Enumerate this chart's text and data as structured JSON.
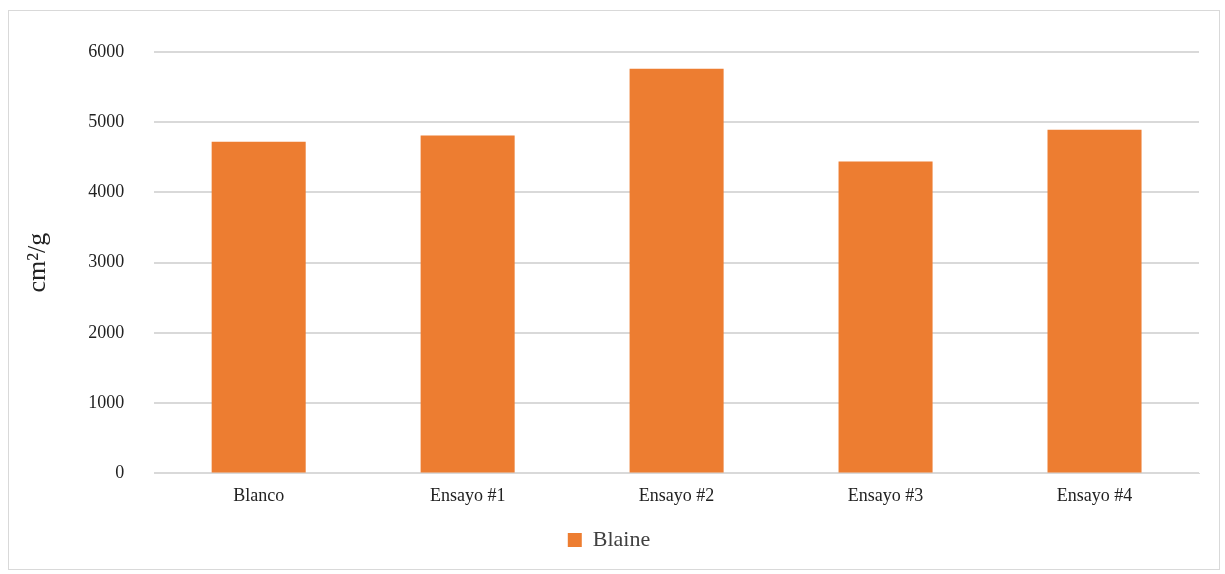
{
  "chart_data": {
    "type": "bar",
    "ylabel": "cm²/g",
    "categories": [
      "Blanco",
      "Ensayo #1",
      "Ensayo #2",
      "Ensayo #3",
      "Ensayo #4"
    ],
    "series": [
      {
        "name": "Blaine",
        "color": "#ed7d31",
        "values": [
          4720,
          4810,
          5760,
          4440,
          4890
        ]
      }
    ],
    "ylim": [
      0,
      6000
    ],
    "yticks": [
      0,
      1000,
      2000,
      3000,
      4000,
      5000,
      6000
    ],
    "grid": "y",
    "legend": "bottom"
  }
}
